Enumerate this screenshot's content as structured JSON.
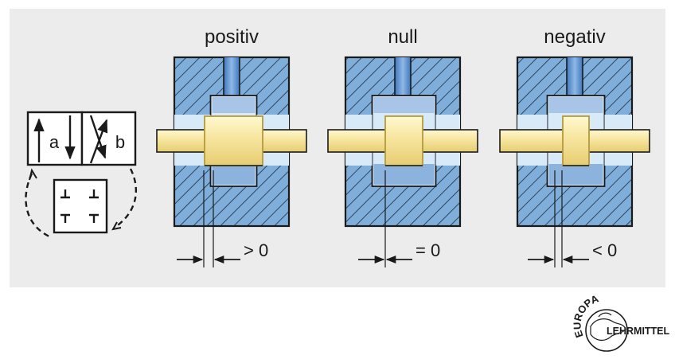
{
  "colors": {
    "panel_background": "#ececec",
    "housing_fill": "#7faedb",
    "hatch_stroke": "#1c2b3d",
    "chamber_fill": "#d8e9f8",
    "bore_fill": "#4f85c8",
    "spool_fill": "#f5e39a",
    "spool_edge": "#b59a3a",
    "outline": "#1a1a1a"
  },
  "valves": [
    {
      "title": "positiv",
      "condition": "> 0",
      "overlap": "positive"
    },
    {
      "title": "null",
      "condition": "= 0",
      "overlap": "zero"
    },
    {
      "title": "negativ",
      "condition": "< 0",
      "overlap": "negative"
    }
  ],
  "symbol": {
    "port_a": "a",
    "port_b": "b"
  },
  "logo": {
    "arc_text": "EUROPA",
    "side_text": "LEHRMITTEL"
  }
}
